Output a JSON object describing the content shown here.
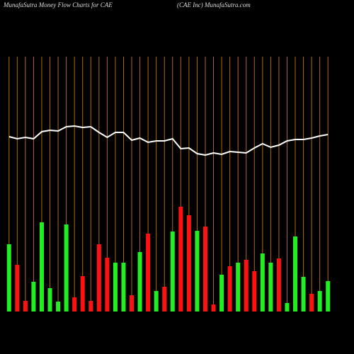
{
  "chart_data": {
    "type": "bar",
    "title": "MunafaSutra  Money Flow  Charts for CAE",
    "subtitle": "(CAE Inc) MunafaSutra.com",
    "ylim": [
      0,
      360
    ],
    "grid": true,
    "grid_color": "#b06a10",
    "bars": {
      "values": [
        95,
        66,
        15,
        42,
        126,
        33,
        14,
        123,
        20,
        50,
        15,
        95,
        76,
        69,
        69,
        23,
        84,
        110,
        29,
        35,
        113,
        148,
        136,
        114,
        120,
        10,
        52,
        64,
        69,
        73,
        57,
        82,
        69,
        75,
        12,
        106,
        49,
        25,
        29,
        43
      ],
      "colors": [
        "#22ee22",
        "#ff1111",
        "#ff1111",
        "#22ee22",
        "#22ee22",
        "#22ee22",
        "#22ee22",
        "#22ee22",
        "#ff1111",
        "#ff1111",
        "#ff1111",
        "#ff1111",
        "#ff1111",
        "#22ee22",
        "#22ee22",
        "#ff1111",
        "#22ee22",
        "#ff1111",
        "#22ee22",
        "#ff1111",
        "#22ee22",
        "#ff1111",
        "#ff1111",
        "#22ee22",
        "#ff1111",
        "#ff1111",
        "#22ee22",
        "#ff1111",
        "#22ee22",
        "#ff1111",
        "#ff1111",
        "#22ee22",
        "#22ee22",
        "#ff1111",
        "#22ee22",
        "#22ee22",
        "#22ee22",
        "#ff1111",
        "#22ee22",
        "#22ee22"
      ]
    },
    "line": {
      "values": [
        247,
        244,
        246,
        244,
        254,
        256,
        255,
        261,
        262,
        260,
        261,
        253,
        246,
        253,
        253,
        242,
        245,
        239,
        241,
        241,
        244,
        230,
        231,
        223,
        221,
        224,
        222,
        226,
        225,
        224,
        231,
        237,
        232,
        235,
        241,
        243,
        243,
        245,
        248,
        250
      ],
      "color": "#ffffff"
    }
  }
}
